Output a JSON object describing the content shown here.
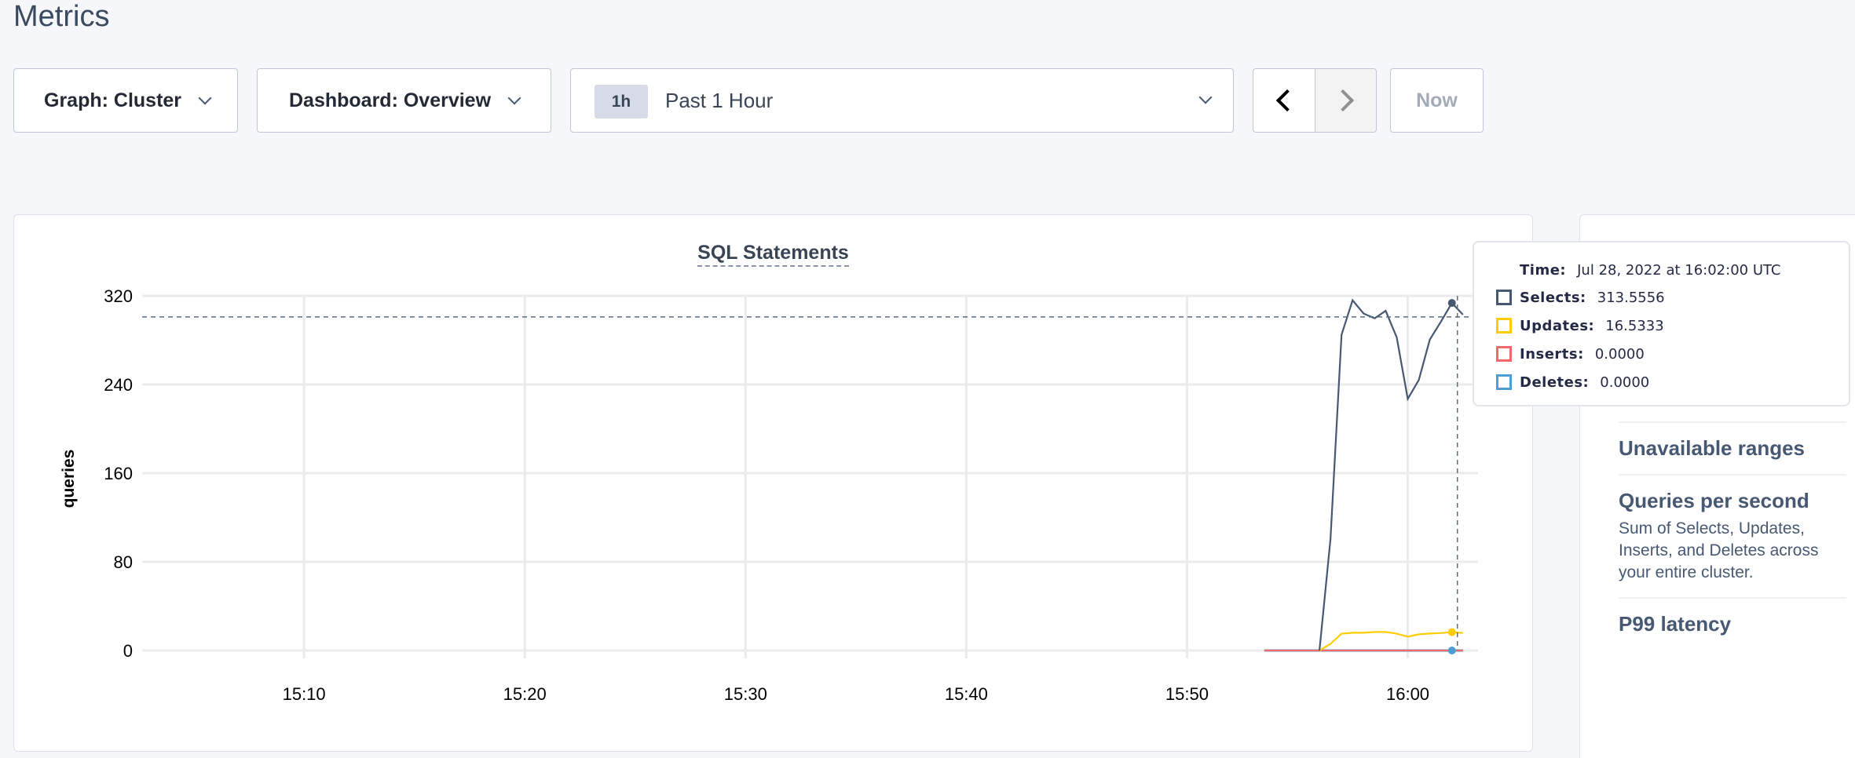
{
  "page": {
    "title": "Metrics"
  },
  "toolbar": {
    "graph_label": "Graph: Cluster",
    "dashboard_label": "Dashboard: Overview",
    "time_badge": "1h",
    "time_range": "Past 1 Hour",
    "prev_icon": "chevron-left-icon",
    "next_icon": "chevron-right-icon",
    "now_label": "Now"
  },
  "chart_data": {
    "type": "line",
    "title": "SQL Statements",
    "ylabel": "queries",
    "xlabel": "",
    "ylim": [
      0,
      320
    ],
    "yticks": [
      "0",
      "80",
      "160",
      "240",
      "320"
    ],
    "xlim": [
      "15:02:40",
      "16:03:11"
    ],
    "xticks": [
      "15:10",
      "15:20",
      "15:30",
      "15:40",
      "15:50",
      "16:00"
    ],
    "grid": true,
    "crosshair": {
      "x": "16:02:00",
      "y": 301
    },
    "x": [
      "15:53:30",
      "15:54:00",
      "15:54:30",
      "15:55:00",
      "15:55:30",
      "15:56:00",
      "15:56:30",
      "15:57:00",
      "15:57:30",
      "15:58:00",
      "15:58:30",
      "15:59:00",
      "15:59:30",
      "16:00:00",
      "16:00:30",
      "16:01:00",
      "16:01:30",
      "16:02:00",
      "16:02:30"
    ],
    "series": [
      {
        "name": "Selects",
        "color": "#475872",
        "values": [
          0,
          0,
          0,
          0,
          0,
          0,
          100.7,
          284.8,
          316,
          304,
          299.7,
          306.5,
          282.5,
          227,
          244,
          280.6,
          296.6,
          313.5556,
          303
        ]
      },
      {
        "name": "Updates",
        "color": "#ffcd02",
        "values": [
          0,
          0,
          0,
          0,
          0,
          0,
          6,
          15.2,
          16,
          16,
          16.7,
          16.7,
          15.2,
          12.5,
          14.6,
          15.3,
          15.8,
          16.5333,
          15.8
        ]
      },
      {
        "name": "Inserts",
        "color": "#f16969",
        "values": [
          0,
          0,
          0,
          0,
          0,
          0,
          0,
          0,
          0,
          0,
          0,
          0,
          0,
          0,
          0,
          0,
          0,
          0,
          0
        ]
      },
      {
        "name": "Deletes",
        "color": "#4e9fd1",
        "values": [
          0,
          0,
          0,
          0,
          0,
          0,
          0,
          0,
          0,
          0,
          0,
          0,
          0,
          0,
          0,
          0,
          0,
          0,
          0
        ]
      }
    ]
  },
  "tooltip": {
    "time_label": "Time:",
    "time_value": "Jul 28, 2022 at 16:02:00 UTC",
    "rows": [
      {
        "label": "Selects:",
        "value": "313.5556",
        "color": "#475872"
      },
      {
        "label": "Updates:",
        "value": "16.5333",
        "color": "#ffcd02"
      },
      {
        "label": "Inserts:",
        "value": "0.0000",
        "color": "#f16969"
      },
      {
        "label": "Deletes:",
        "value": "0.0000",
        "color": "#4e9fd1"
      }
    ]
  },
  "sidebar": {
    "items": [
      {
        "title": "Unavailable ranges",
        "desc": []
      },
      {
        "title": "Queries per second",
        "desc": [
          "Sum of Selects, Updates, Inserts, and Deletes across",
          "your entire cluster."
        ]
      },
      {
        "title": "P99 latency",
        "desc": []
      }
    ]
  }
}
